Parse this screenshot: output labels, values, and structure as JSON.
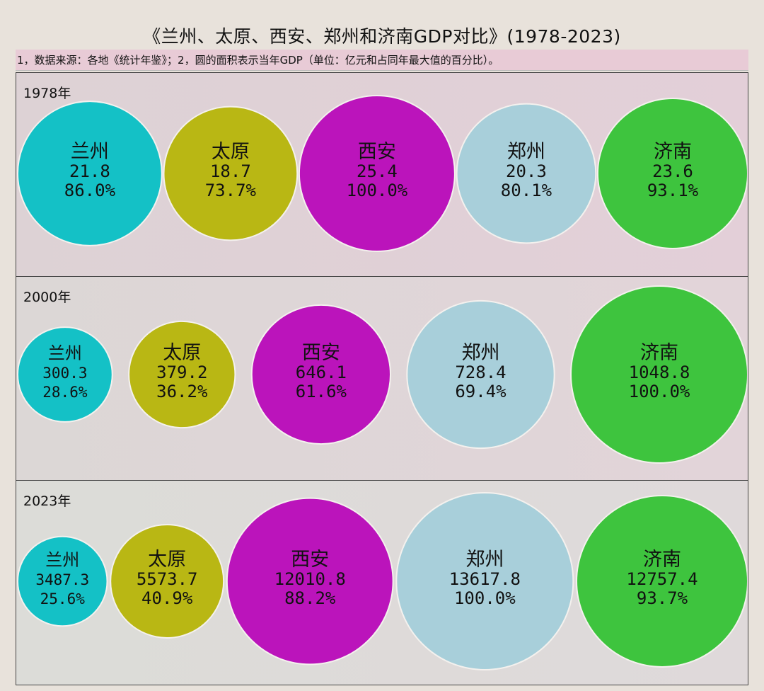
{
  "title": "《兰州、太原、西安、郑州和济南GDP对比》(1978-2023)",
  "subtitle": "1，数据来源：各地《统计年鉴》；2，圆的面积表示当年GDP（单位：亿元和占同年最大值的百分比）。",
  "colors": {
    "兰州": "#14c1c6",
    "太原": "#b9b714",
    "西安": "#bb14bb",
    "郑州": "#a8cfda",
    "济南": "#3ec43e"
  },
  "chart_data": [
    {
      "type": "bubble",
      "year_label": "1978年",
      "categories": [
        "兰州",
        "太原",
        "西安",
        "郑州",
        "济南"
      ],
      "values": [
        21.8,
        18.7,
        25.4,
        20.3,
        23.6
      ],
      "value_labels": [
        "21.8",
        "18.7",
        "25.4",
        "20.3",
        "23.6"
      ],
      "percent_labels": [
        "86.0%",
        "73.7%",
        "100.0%",
        "80.1%",
        "93.1%"
      ]
    },
    {
      "type": "bubble",
      "year_label": "2000年",
      "categories": [
        "兰州",
        "太原",
        "西安",
        "郑州",
        "济南"
      ],
      "values": [
        300.3,
        379.2,
        646.1,
        728.4,
        1048.8
      ],
      "value_labels": [
        "300.3",
        "379.2",
        "646.1",
        "728.4",
        "1048.8"
      ],
      "percent_labels": [
        "28.6%",
        "36.2%",
        "61.6%",
        "69.4%",
        "100.0%"
      ]
    },
    {
      "type": "bubble",
      "year_label": "2023年",
      "categories": [
        "兰州",
        "太原",
        "西安",
        "郑州",
        "济南"
      ],
      "values": [
        3487.3,
        5573.7,
        12010.8,
        13617.8,
        12757.4
      ],
      "value_labels": [
        "3487.3",
        "5573.7",
        "12010.8",
        "13617.8",
        "12757.4"
      ],
      "percent_labels": [
        "25.6%",
        "40.9%",
        "88.2%",
        "100.0%",
        "93.7%"
      ]
    }
  ]
}
